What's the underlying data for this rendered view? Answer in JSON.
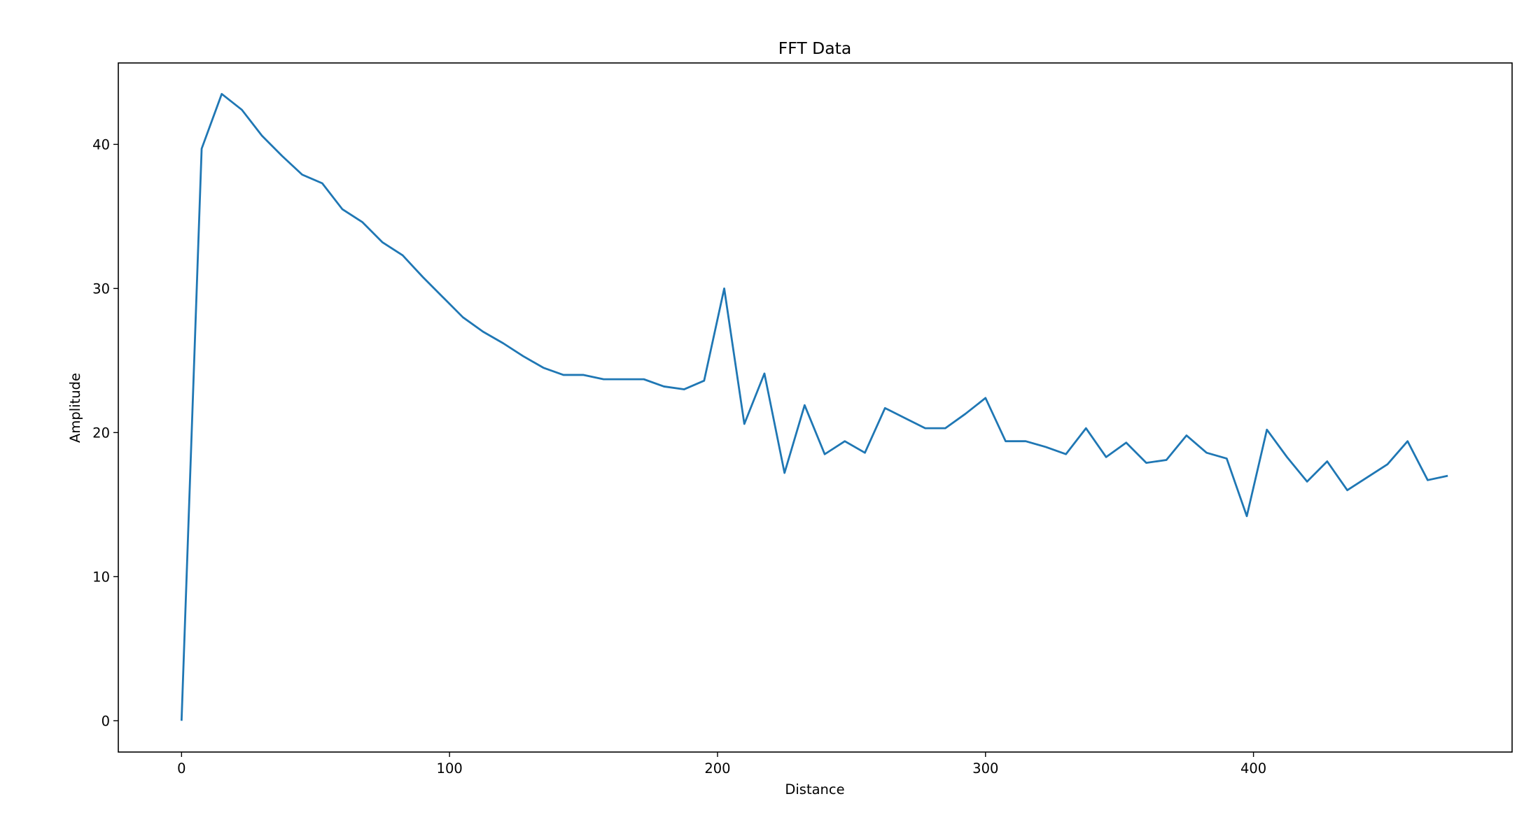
{
  "chart_data": {
    "type": "line",
    "title": "FFT Data",
    "xlabel": "Distance",
    "ylabel": "Amplitude",
    "xlim": [
      -23.6,
      496.5
    ],
    "ylim": [
      -2.17,
      45.65
    ],
    "xticks": [
      "0",
      "100",
      "200",
      "300",
      "400"
    ],
    "yticks": [
      "0",
      "10",
      "20",
      "30",
      "40"
    ],
    "grid": false,
    "legend": "none",
    "line_color": "#1f77b4",
    "series": [
      {
        "x": [
          0,
          7.5,
          15,
          22.5,
          30,
          37.5,
          45,
          52.5,
          60,
          67.5,
          75,
          82.5,
          90,
          97.5,
          105,
          112.5,
          120,
          127.5,
          135,
          142.5,
          150,
          157.5,
          165,
          172.5,
          180,
          187.5,
          195,
          202.5,
          210,
          217.5,
          225,
          232.5,
          240,
          247.5,
          255,
          262.5,
          270,
          277.5,
          285,
          292.5,
          300,
          307.5,
          315,
          322.5,
          330,
          337.5,
          345,
          352.5,
          360,
          367.5,
          375,
          382.5,
          390,
          397.5,
          405,
          412.5,
          420,
          427.5,
          435,
          442.5,
          450,
          457.5,
          465,
          472.5
        ],
        "y": [
          0,
          39.7,
          43.5,
          42.4,
          40.6,
          39.2,
          37.9,
          37.3,
          35.5,
          34.6,
          33.2,
          32.3,
          30.8,
          29.4,
          28.0,
          27.0,
          26.2,
          25.3,
          24.5,
          24.0,
          24.0,
          23.7,
          23.7,
          23.7,
          23.2,
          23.0,
          23.6,
          30.0,
          20.6,
          24.1,
          17.2,
          21.9,
          18.5,
          19.4,
          18.6,
          21.7,
          21.0,
          20.3,
          20.3,
          21.3,
          22.4,
          19.4,
          19.4,
          19.0,
          18.5,
          20.3,
          18.3,
          19.3,
          17.9,
          18.1,
          19.8,
          18.6,
          18.2,
          14.2,
          20.2,
          18.3,
          16.6,
          18.0,
          16.0,
          16.9,
          17.8,
          19.4,
          16.7,
          17.0
        ]
      }
    ]
  }
}
